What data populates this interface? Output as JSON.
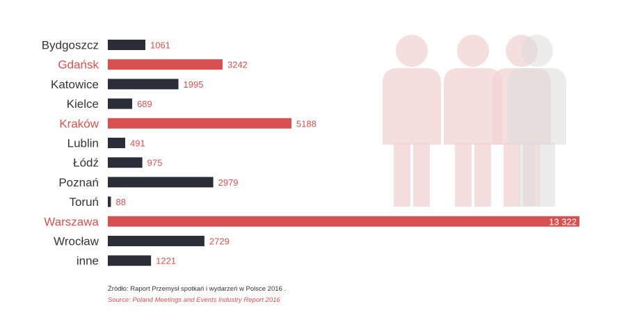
{
  "chart_data": {
    "type": "bar",
    "orientation": "horizontal",
    "categories": [
      "Bydgoszcz",
      "Gdańsk",
      "Katowice",
      "Kielce",
      "Kraków",
      "Lublin",
      "Łódź",
      "Poznań",
      "Toruń",
      "Warszawa",
      "Wrocław",
      "inne"
    ],
    "values": [
      1061,
      3242,
      1995,
      689,
      5188,
      491,
      975,
      2979,
      88,
      13322,
      2729,
      1221
    ],
    "value_labels": [
      "1061",
      "3242",
      "1995",
      "689",
      "5188",
      "491",
      "975",
      "2979",
      "88",
      "13 322",
      "2729",
      "1221"
    ],
    "highlighted": [
      false,
      true,
      false,
      false,
      true,
      false,
      false,
      false,
      false,
      true,
      false,
      false
    ],
    "xlim": [
      0,
      13322
    ],
    "grid": false,
    "legend": "none"
  },
  "colors": {
    "bar": "#2b2d38",
    "highlight": "#d95050",
    "category_text": "#333333",
    "value_text": "#d95050",
    "figure": "#f2d3d3",
    "figure_gray": "#dcdcdc"
  },
  "decoration": {
    "icon": "people-figures-icon"
  },
  "source": {
    "pl": "Źródło: Raport Przemysł spotkań i wydarzeń w Polsce 2016 .",
    "en": "Source: Poland Meetings and Events Industry Report 2016"
  }
}
